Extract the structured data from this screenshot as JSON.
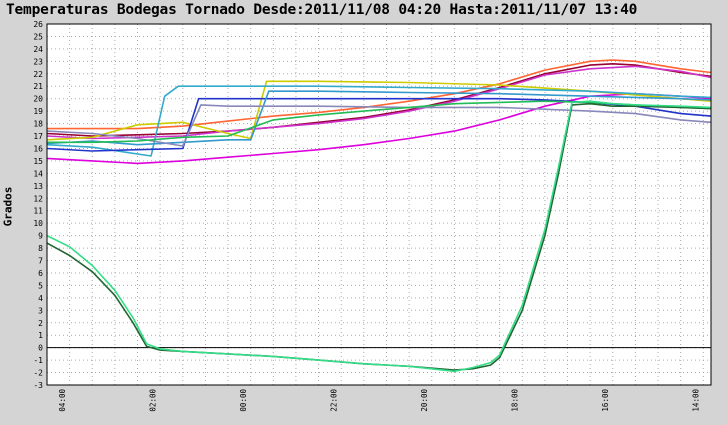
{
  "chart_data": {
    "type": "line",
    "title": "Temperaturas Bodegas Tornado Desde:2011/11/08 04:20 Hasta:2011/11/07 13:40",
    "ylabel": "Grados",
    "xlabel": "",
    "ylim": [
      -3,
      26
    ],
    "yticks": [
      -3,
      -2,
      -1,
      0,
      1,
      2,
      3,
      4,
      5,
      6,
      7,
      8,
      9,
      10,
      11,
      12,
      13,
      14,
      15,
      16,
      17,
      18,
      19,
      20,
      21,
      22,
      23,
      24,
      25,
      26
    ],
    "xlim": [
      0,
      14.67
    ],
    "xticks": [
      {
        "x": 0.33,
        "label": "04:00"
      },
      {
        "x": 2.33,
        "label": "02:00"
      },
      {
        "x": 4.33,
        "label": "00:00"
      },
      {
        "x": 6.33,
        "label": "22:00"
      },
      {
        "x": 8.33,
        "label": "20:00"
      },
      {
        "x": 10.33,
        "label": "18:00"
      },
      {
        "x": 12.33,
        "label": "16:00"
      },
      {
        "x": 14.33,
        "label": "14:00"
      }
    ],
    "grid": true,
    "zero_line": true,
    "legend": "none",
    "series": [
      {
        "color": "#ff6633",
        "points": [
          [
            0,
            17.6
          ],
          [
            1,
            17.6
          ],
          [
            2,
            17.6
          ],
          [
            3,
            17.8
          ],
          [
            4,
            18.2
          ],
          [
            5,
            18.6
          ],
          [
            6,
            18.9
          ],
          [
            7,
            19.3
          ],
          [
            8,
            19.8
          ],
          [
            9,
            20.4
          ],
          [
            10,
            21.2
          ],
          [
            11,
            22.3
          ],
          [
            12,
            23.0
          ],
          [
            12.5,
            23.1
          ],
          [
            13,
            23.0
          ],
          [
            13.5,
            22.7
          ],
          [
            14,
            22.4
          ],
          [
            14.67,
            22.1
          ]
        ]
      },
      {
        "color": "#990033",
        "points": [
          [
            0,
            17.2
          ],
          [
            1,
            17.0
          ],
          [
            2,
            17.1
          ],
          [
            3,
            17.2
          ],
          [
            4,
            17.4
          ],
          [
            5,
            17.7
          ],
          [
            6,
            18.1
          ],
          [
            7,
            18.5
          ],
          [
            8,
            19.1
          ],
          [
            9,
            19.9
          ],
          [
            10,
            20.9
          ],
          [
            11,
            22.0
          ],
          [
            12,
            22.7
          ],
          [
            12.5,
            22.8
          ],
          [
            13,
            22.7
          ],
          [
            14,
            22.1
          ],
          [
            14.67,
            21.8
          ]
        ]
      },
      {
        "color": "#cc33cc",
        "points": [
          [
            0,
            17.0
          ],
          [
            1,
            16.8
          ],
          [
            2,
            16.9
          ],
          [
            3,
            17.0
          ],
          [
            4,
            17.4
          ],
          [
            5,
            17.7
          ],
          [
            6,
            18.0
          ],
          [
            7,
            18.4
          ],
          [
            8,
            19.0
          ],
          [
            9,
            19.8
          ],
          [
            10,
            20.8
          ],
          [
            11,
            21.9
          ],
          [
            12,
            22.4
          ],
          [
            13,
            22.6
          ],
          [
            14,
            22.2
          ],
          [
            14.67,
            21.7
          ]
        ]
      },
      {
        "color": "#dd00dd",
        "points": [
          [
            0,
            15.2
          ],
          [
            1,
            15.0
          ],
          [
            2,
            14.8
          ],
          [
            3,
            15.0
          ],
          [
            4,
            15.3
          ],
          [
            5,
            15.6
          ],
          [
            6,
            15.9
          ],
          [
            7,
            16.3
          ],
          [
            8,
            16.8
          ],
          [
            9,
            17.4
          ],
          [
            10,
            18.3
          ],
          [
            11,
            19.4
          ],
          [
            12,
            20.2
          ],
          [
            13,
            20.4
          ],
          [
            14,
            20.2
          ],
          [
            14.67,
            20.0
          ]
        ]
      },
      {
        "color": "#cccc00",
        "points": [
          [
            0,
            16.7
          ],
          [
            1,
            16.9
          ],
          [
            2,
            17.9
          ],
          [
            3,
            18.1
          ],
          [
            4,
            17.2
          ],
          [
            4.5,
            16.8
          ],
          [
            4.85,
            21.4
          ],
          [
            6,
            21.4
          ],
          [
            8,
            21.3
          ],
          [
            10,
            21.1
          ],
          [
            12,
            20.6
          ],
          [
            13,
            20.3
          ],
          [
            14,
            20.0
          ],
          [
            14.67,
            19.8
          ]
        ]
      },
      {
        "color": "#33aacc",
        "points": [
          [
            0,
            16.3
          ],
          [
            1,
            16.1
          ],
          [
            2.3,
            15.4
          ],
          [
            2.6,
            20.2
          ],
          [
            2.9,
            21.0
          ],
          [
            4,
            21.0
          ],
          [
            6,
            21.0
          ],
          [
            8,
            20.9
          ],
          [
            10,
            20.8
          ],
          [
            12,
            20.6
          ],
          [
            13,
            20.4
          ],
          [
            14,
            20.2
          ],
          [
            14.67,
            20.1
          ]
        ]
      },
      {
        "color": "#2233cc",
        "points": [
          [
            0,
            16.0
          ],
          [
            1,
            15.8
          ],
          [
            2,
            15.9
          ],
          [
            3,
            16.0
          ],
          [
            3.35,
            20.0
          ],
          [
            4,
            20.0
          ],
          [
            6,
            20.0
          ],
          [
            8,
            20.0
          ],
          [
            10,
            20.0
          ],
          [
            11,
            19.9
          ],
          [
            12,
            19.7
          ],
          [
            13,
            19.4
          ],
          [
            14,
            18.8
          ],
          [
            14.67,
            18.6
          ]
        ]
      },
      {
        "color": "#3399cc",
        "points": [
          [
            0,
            16.4
          ],
          [
            1,
            16.6
          ],
          [
            2,
            16.3
          ],
          [
            3,
            16.5
          ],
          [
            4,
            16.7
          ],
          [
            4.5,
            16.7
          ],
          [
            4.9,
            20.6
          ],
          [
            6,
            20.6
          ],
          [
            8,
            20.5
          ],
          [
            10,
            20.4
          ],
          [
            12,
            20.2
          ],
          [
            13,
            20.1
          ],
          [
            14,
            20.0
          ],
          [
            14.67,
            19.9
          ]
        ]
      },
      {
        "color": "#8888bb",
        "points": [
          [
            0,
            17.4
          ],
          [
            1,
            17.2
          ],
          [
            2,
            16.8
          ],
          [
            3,
            16.2
          ],
          [
            3.4,
            19.5
          ],
          [
            4,
            19.4
          ],
          [
            6,
            19.4
          ],
          [
            8,
            19.3
          ],
          [
            10,
            19.3
          ],
          [
            12,
            19.0
          ],
          [
            13,
            18.8
          ],
          [
            14,
            18.3
          ],
          [
            14.67,
            18.1
          ]
        ]
      },
      {
        "color": "#22bb55",
        "points": [
          [
            0,
            16.5
          ],
          [
            1,
            16.5
          ],
          [
            2,
            16.6
          ],
          [
            3,
            16.9
          ],
          [
            4,
            17.0
          ],
          [
            5,
            18.3
          ],
          [
            6,
            18.7
          ],
          [
            7,
            19.0
          ],
          [
            8,
            19.3
          ],
          [
            9,
            19.6
          ],
          [
            10,
            19.7
          ],
          [
            11,
            19.8
          ],
          [
            12,
            19.7
          ],
          [
            13,
            19.5
          ],
          [
            14,
            19.3
          ],
          [
            14.67,
            19.2
          ]
        ]
      },
      {
        "color": "#226633",
        "points": [
          [
            0,
            8.4
          ],
          [
            0.5,
            7.4
          ],
          [
            1,
            6.1
          ],
          [
            1.5,
            4.2
          ],
          [
            1.9,
            2.0
          ],
          [
            2.2,
            0.1
          ],
          [
            2.5,
            -0.2
          ],
          [
            3,
            -0.3
          ],
          [
            4,
            -0.5
          ],
          [
            5,
            -0.7
          ],
          [
            6,
            -1.0
          ],
          [
            7,
            -1.3
          ],
          [
            8,
            -1.5
          ],
          [
            9,
            -1.8
          ],
          [
            9.4,
            -1.7
          ],
          [
            9.8,
            -1.4
          ],
          [
            10,
            -0.8
          ],
          [
            10.5,
            3.0
          ],
          [
            11,
            9.0
          ],
          [
            11.3,
            14.0
          ],
          [
            11.6,
            19.5
          ],
          [
            12,
            19.6
          ],
          [
            12.5,
            19.4
          ],
          [
            13,
            19.4
          ],
          [
            14,
            19.3
          ],
          [
            14.67,
            19.2
          ]
        ]
      },
      {
        "color": "#33dd88",
        "points": [
          [
            0,
            9.0
          ],
          [
            0.5,
            8.1
          ],
          [
            1,
            6.6
          ],
          [
            1.5,
            4.6
          ],
          [
            1.9,
            2.4
          ],
          [
            2.2,
            0.3
          ],
          [
            2.5,
            -0.1
          ],
          [
            3,
            -0.3
          ],
          [
            4,
            -0.5
          ],
          [
            5,
            -0.7
          ],
          [
            6,
            -1.0
          ],
          [
            7,
            -1.3
          ],
          [
            8,
            -1.5
          ],
          [
            9,
            -1.9
          ],
          [
            9.4,
            -1.6
          ],
          [
            9.8,
            -1.2
          ],
          [
            10,
            -0.6
          ],
          [
            10.5,
            3.4
          ],
          [
            11,
            9.5
          ],
          [
            11.3,
            14.5
          ],
          [
            11.6,
            19.7
          ],
          [
            12,
            19.8
          ],
          [
            12.5,
            19.6
          ],
          [
            13,
            19.5
          ],
          [
            14,
            19.4
          ],
          [
            14.67,
            19.3
          ]
        ]
      }
    ]
  },
  "style": {
    "plot_bg": "#ffffff",
    "frame_bg": "#d4d4d4",
    "grid_color": "#aaaaaa",
    "zero_line_color": "#000000"
  }
}
